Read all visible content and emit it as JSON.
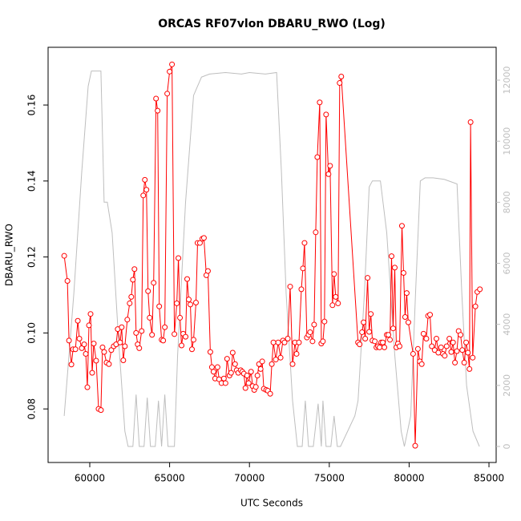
{
  "chart_data": {
    "type": "line",
    "title": "ORCAS RF07vlon DBARU_RWO (Log)",
    "x_label": "UTC Seconds",
    "y_label": "DBARU_RWO",
    "xlim": [
      57390,
      85450
    ],
    "xticks": [
      60000,
      65000,
      70000,
      75000,
      80000,
      85000
    ],
    "ylim": [
      0.0659,
      0.1752
    ],
    "yticks": [
      0.08,
      {
        "value": 0.1,
        "label": "0.10"
      },
      0.12,
      0.14,
      0.16
    ],
    "y2lim": [
      -525,
      13077
    ],
    "y2ticks": [
      0,
      2000,
      4000,
      6000,
      8000,
      10000,
      12000
    ],
    "series": [
      {
        "name": "DBARU_RWO",
        "color": "#ff0000",
        "x": [
          58400,
          58600,
          58700,
          58850,
          58950,
          59100,
          59250,
          59350,
          59500,
          59650,
          59750,
          59850,
          59950,
          60050,
          60150,
          60250,
          60400,
          60550,
          60700,
          60800,
          60900,
          61050,
          61200,
          61350,
          61500,
          61650,
          61750,
          61900,
          62000,
          62100,
          62200,
          62350,
          62500,
          62600,
          62700,
          62800,
          62900,
          63000,
          63100,
          63250,
          63350,
          63450,
          63550,
          63650,
          63750,
          63900,
          64000,
          64150,
          64250,
          64350,
          64500,
          64600,
          64700,
          64850,
          65000,
          65150,
          65300,
          65450,
          65550,
          65650,
          65750,
          65850,
          66000,
          66100,
          66200,
          66300,
          66400,
          66500,
          66650,
          66750,
          66900,
          67050,
          67150,
          67300,
          67400,
          67550,
          67650,
          67750,
          67850,
          68000,
          68100,
          68250,
          68400,
          68500,
          68600,
          68750,
          68850,
          68950,
          69100,
          69200,
          69300,
          69450,
          69550,
          69650,
          69750,
          69850,
          69950,
          70100,
          70200,
          70300,
          70400,
          70500,
          70600,
          70700,
          70800,
          70900,
          71050,
          71150,
          71300,
          71400,
          71500,
          71650,
          71800,
          71950,
          72100,
          72200,
          72400,
          72550,
          72700,
          72850,
          72950,
          73100,
          73250,
          73350,
          73450,
          73600,
          73700,
          73800,
          73950,
          74050,
          74150,
          74250,
          74400,
          74500,
          74600,
          74700,
          74800,
          74950,
          75050,
          75200,
          75300,
          75400,
          75550,
          75650,
          75750,
          76800,
          76900,
          77050,
          77150,
          77250,
          77400,
          77500,
          77600,
          77700,
          77850,
          77950,
          78050,
          78150,
          78250,
          78350,
          78450,
          78600,
          78700,
          78800,
          78900,
          79000,
          79100,
          79200,
          79300,
          79400,
          79550,
          79650,
          79750,
          79850,
          79950,
          80250,
          80380,
          80550,
          80670,
          80790,
          80900,
          81080,
          81190,
          81310,
          81420,
          81600,
          81710,
          81830,
          82000,
          82120,
          82230,
          82350,
          82520,
          82640,
          82750,
          82870,
          82990,
          83100,
          83220,
          83330,
          83450,
          83570,
          83680,
          83780,
          83850,
          83980,
          84150,
          84270,
          84430
        ],
        "values": [
          0.1203,
          0.1137,
          0.098,
          0.0917,
          0.0957,
          0.0957,
          0.1032,
          0.0985,
          0.096,
          0.097,
          0.0945,
          0.0857,
          0.102,
          0.105,
          0.0895,
          0.0972,
          0.0927,
          0.08,
          0.0797,
          0.0962,
          0.095,
          0.0922,
          0.0918,
          0.0955,
          0.0965,
          0.097,
          0.101,
          0.0975,
          0.1015,
          0.0928,
          0.0965,
          0.1035,
          0.1078,
          0.1095,
          0.114,
          0.1168,
          0.1,
          0.097,
          0.096,
          0.1005,
          0.1362,
          0.1403,
          0.1377,
          0.111,
          0.104,
          0.0995,
          0.1132,
          0.1617,
          0.1585,
          0.107,
          0.0982,
          0.098,
          0.1015,
          0.163,
          0.1688,
          0.1707,
          0.0997,
          0.1078,
          0.1197,
          0.104,
          0.0967,
          0.0998,
          0.099,
          0.1142,
          0.1088,
          0.1075,
          0.0957,
          0.0982,
          0.108,
          0.1237,
          0.1237,
          0.1248,
          0.125,
          0.1152,
          0.1163,
          0.095,
          0.091,
          0.0898,
          0.088,
          0.091,
          0.0878,
          0.0868,
          0.088,
          0.0868,
          0.0932,
          0.0888,
          0.0895,
          0.0948,
          0.0918,
          0.0902,
          0.0895,
          0.0902,
          0.0898,
          0.0893,
          0.0855,
          0.0888,
          0.0868,
          0.0898,
          0.086,
          0.085,
          0.0858,
          0.0888,
          0.0918,
          0.0905,
          0.0925,
          0.0853,
          0.085,
          0.0848,
          0.084,
          0.0918,
          0.0975,
          0.093,
          0.0975,
          0.0935,
          0.098,
          0.0975,
          0.0985,
          0.1122,
          0.0918,
          0.0975,
          0.0945,
          0.0975,
          0.1115,
          0.117,
          0.1237,
          0.0988,
          0.0995,
          0.1002,
          0.0978,
          0.1022,
          0.1265,
          0.1463,
          0.1607,
          0.0972,
          0.0978,
          0.103,
          0.1575,
          0.1418,
          0.144,
          0.1073,
          0.1155,
          0.1095,
          0.1078,
          0.1658,
          0.1675,
          0.0975,
          0.097,
          0.1002,
          0.1028,
          0.0985,
          0.1145,
          0.1003,
          0.105,
          0.098,
          0.0978,
          0.0962,
          0.0965,
          0.0962,
          0.0975,
          0.0975,
          0.0962,
          0.0995,
          0.0995,
          0.0982,
          0.1202,
          0.1012,
          0.1172,
          0.0962,
          0.0972,
          0.0965,
          0.1282,
          0.1158,
          0.1042,
          0.1105,
          0.1028,
          0.0945,
          0.0703,
          0.0958,
          0.0925,
          0.0918,
          0.0998,
          0.0985,
          0.1045,
          0.1048,
          0.0965,
          0.0955,
          0.0985,
          0.0948,
          0.0962,
          0.0945,
          0.094,
          0.0965,
          0.0985,
          0.095,
          0.0975,
          0.0922,
          0.0952,
          0.1005,
          0.0995,
          0.0955,
          0.0922,
          0.0975,
          0.0948,
          0.0905,
          0.1555,
          0.0935,
          0.107,
          0.1108,
          0.1115
        ]
      },
      {
        "color": "#bebebe",
        "axis": "y2",
        "x": [
          58400,
          59000,
          59500,
          59900,
          60100,
          60700,
          60900,
          61100,
          61400,
          61800,
          62200,
          62400,
          62700,
          62900,
          63100,
          63400,
          63600,
          63800,
          64100,
          64300,
          64500,
          64700,
          64900,
          65300,
          65500,
          66000,
          66500,
          67000,
          67500,
          68500,
          69500,
          70000,
          71000,
          71700,
          72000,
          72300,
          72700,
          73000,
          73300,
          73500,
          73700,
          74000,
          74300,
          74500,
          74600,
          74800,
          75100,
          75300,
          75500,
          75700,
          76600,
          76800,
          77200,
          77500,
          77700,
          78200,
          78600,
          79100,
          79500,
          79700,
          80100,
          80400,
          80700,
          81000,
          81500,
          82200,
          83000,
          83300,
          83600,
          84000,
          84400
        ],
        "values": [
          1000,
          5000,
          9000,
          11800,
          12300,
          12300,
          8000,
          8000,
          7000,
          3500,
          500,
          0,
          0,
          1700,
          0,
          0,
          1600,
          0,
          0,
          1500,
          0,
          1700,
          0,
          0,
          3000,
          8000,
          11500,
          12100,
          12200,
          12250,
          12200,
          12250,
          12200,
          12250,
          9000,
          5000,
          1500,
          0,
          0,
          1500,
          0,
          0,
          1400,
          0,
          1500,
          0,
          0,
          1000,
          0,
          0,
          1000,
          1500,
          5000,
          8500,
          8700,
          8700,
          7000,
          3000,
          500,
          0,
          1000,
          5000,
          8700,
          8800,
          8800,
          8750,
          8600,
          5000,
          2000,
          500,
          0
        ]
      }
    ]
  }
}
